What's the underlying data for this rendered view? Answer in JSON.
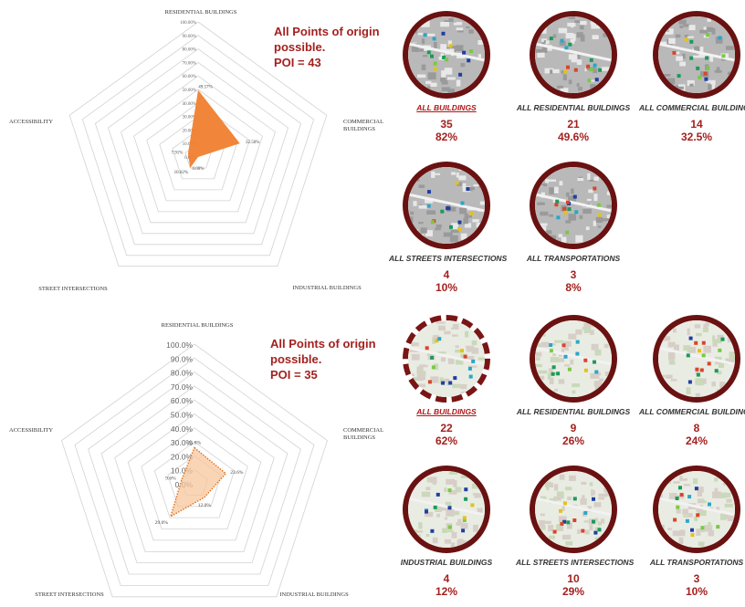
{
  "chart_data": [
    {
      "type": "radar",
      "axes": [
        "RESIDENTIAL BUILDINGS",
        "COMMERCIAL BUILDINGS",
        "INDUSTRIAL BUILDINGS",
        "STREET INTERSECTIONS",
        "ACCESSIBILITY"
      ],
      "values": [
        49.57,
        32.5,
        0.0,
        10.02,
        7.91
      ],
      "value_labels": [
        "49.57%",
        "32.50%",
        "0.00%",
        "10.02%",
        "7.91%"
      ],
      "ticks": [
        "0.00%",
        "10.00%",
        "20.00%",
        "30.00%",
        "40.00%",
        "50.00%",
        "60.00%",
        "70.00%",
        "80.00%",
        "90.00%",
        "100.00%"
      ],
      "rlim": [
        0,
        100
      ],
      "fill_color": "#f07f2f",
      "style": "solid"
    },
    {
      "type": "radar",
      "axes": [
        "RESIDENTIAL BUILDINGS",
        "COMMERCIAL BUILDINGS",
        "INDUSTRIAL BUILDINGS",
        "STREET INTERSECTIONS",
        "ACCESSIBILITY"
      ],
      "values": [
        25.8,
        23.6,
        12.0,
        29.0,
        9.6
      ],
      "value_labels": [
        "25.8%",
        "23.6%",
        "12.0%",
        "29.0%",
        "9.6%"
      ],
      "ticks": [
        "0.0%",
        "10.0%",
        "20.0%",
        "30.0%",
        "40.0%",
        "50.0%",
        "60.0%",
        "70.0%",
        "80.0%",
        "90.0%",
        "100.0%"
      ],
      "rlim": [
        0,
        100
      ],
      "fill_color": "#f7c79d",
      "style": "dotted"
    }
  ],
  "poi_boxes": [
    {
      "line1": "All Points of origin",
      "line2": "possible.",
      "line3": "POI = 43"
    },
    {
      "line1": "All Points of origin",
      "line2": "possible.",
      "line3": "POI = 35"
    }
  ],
  "maps_top": [
    {
      "label": "ALL BUILDINGS",
      "count": "35",
      "pct": "82%",
      "active": true
    },
    {
      "label": "ALL RESIDENTIAL BUILDINGS",
      "count": "21",
      "pct": "49.6%",
      "active": false
    },
    {
      "label": "ALL COMMERCIAL BUILDINGS",
      "count": "14",
      "pct": "32.5%",
      "active": false
    },
    {
      "label": "ALL STREETS INTERSECTIONS",
      "count": "4",
      "pct": "10%",
      "active": false
    },
    {
      "label": "ALL TRANSPORTATIONS",
      "count": "3",
      "pct": "8%",
      "active": false
    }
  ],
  "maps_bottom": [
    {
      "label": "ALL BUILDINGS",
      "count": "22",
      "pct": "62%",
      "active": true
    },
    {
      "label": "ALL RESIDENTIAL BUILDINGS",
      "count": "9",
      "pct": "26%",
      "active": false
    },
    {
      "label": "ALL COMMERCIAL BUILDINGS",
      "count": "8",
      "pct": "24%",
      "active": false
    },
    {
      "label": "INDUSTRIAL BUILDINGS",
      "count": "4",
      "pct": "12%",
      "active": false
    },
    {
      "label": "ALL STREETS INTERSECTIONS",
      "count": "10",
      "pct": "29%",
      "active": false
    },
    {
      "label": "ALL TRANSPORTATIONS",
      "count": "3",
      "pct": "10%",
      "active": false
    }
  ],
  "colors": {
    "accent": "#a3211f",
    "disc_border": "#6a1111",
    "grid": "#cfcfcf"
  }
}
